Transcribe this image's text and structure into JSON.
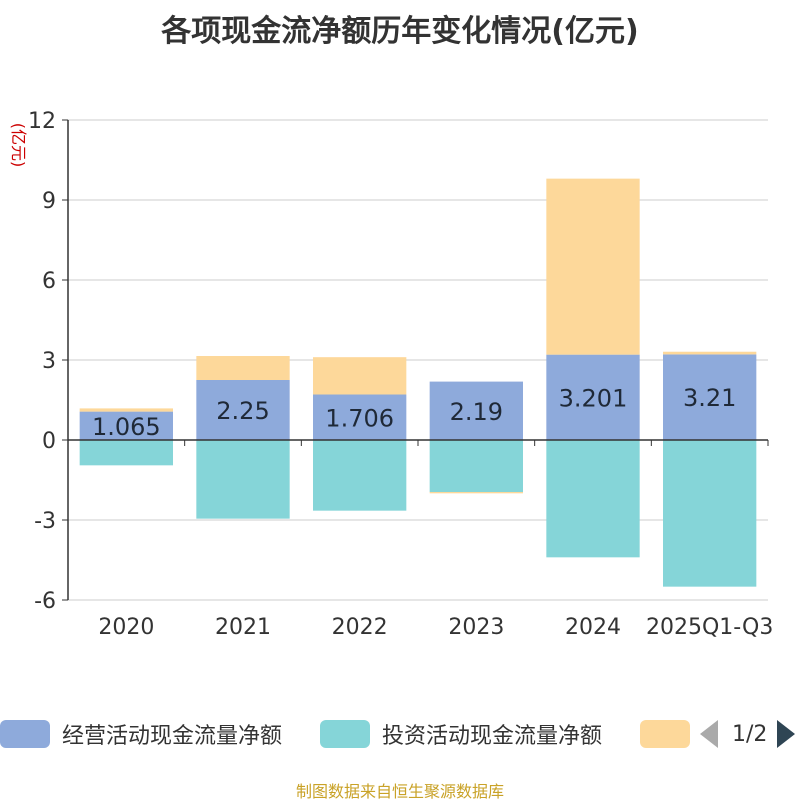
{
  "title": "各项现金流净额历年变化情况(亿元)",
  "source": "制图数据来自恒生聚源数据库",
  "pager": {
    "text": "1/2"
  },
  "colors": {
    "operating": "#8eaadb",
    "investing": "#85d5d8",
    "financing": "#fdd89a"
  },
  "chart_data": {
    "type": "bar",
    "stacked": true,
    "title": "各项现金流净额历年变化情况(亿元)",
    "ylabel": "(亿元)",
    "xlabel": "",
    "ylim": [
      -6,
      12
    ],
    "yticks": [
      -6,
      -3,
      0,
      3,
      6,
      9,
      12
    ],
    "ytick_labels": [
      "-6",
      "-3",
      "0",
      "3",
      "6",
      "9",
      "12"
    ],
    "grid": true,
    "categories": [
      "2020",
      "2021",
      "2022",
      "2023",
      "2024",
      "2025Q1-Q3"
    ],
    "series": [
      {
        "name": "经营活动现金流量净额",
        "color": "#8eaadb",
        "values": [
          1.065,
          2.25,
          1.706,
          2.19,
          3.201,
          3.21
        ],
        "data_labels": [
          "1.065",
          "2.25",
          "1.706",
          "2.19",
          "3.201",
          "3.21"
        ]
      },
      {
        "name": "投资活动现金流量净额",
        "color": "#85d5d8",
        "values": [
          -0.95,
          -2.95,
          -2.65,
          -1.95,
          -4.4,
          -5.5
        ]
      },
      {
        "name": "",
        "color": "#fdd89a",
        "values": [
          0.12,
          0.9,
          1.4,
          -0.05,
          6.6,
          0.1
        ]
      }
    ],
    "legend": {
      "position": "bottom",
      "items": [
        "经营活动现金流量净额",
        "投资活动现金流量净额",
        ""
      ]
    }
  }
}
